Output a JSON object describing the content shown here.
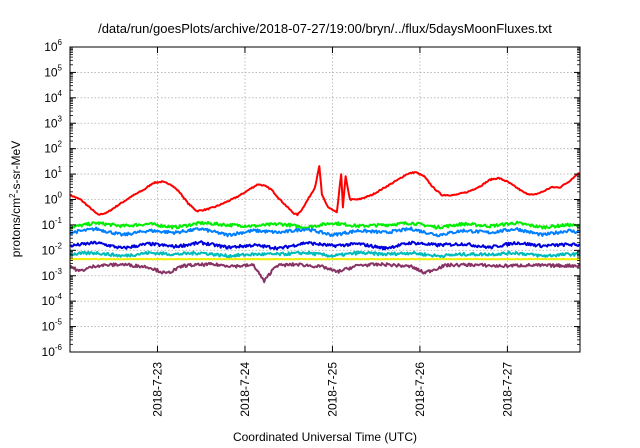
{
  "chart_data": {
    "type": "line",
    "title": "/data/run/goesPlots/archive/2018-07-27/19:00/bryn/../flux/5daysMoonFluxes.txt",
    "xlabel": "Coordinated Universal Time (UTC)",
    "ylabel": {
      "prefix": "protons/cm",
      "sup": "2",
      "suffix": "-s-sr-MeV"
    },
    "yscale": "log",
    "ylim": [
      1e-06,
      1000000.0
    ],
    "y_ticks": [
      {
        "base": "10",
        "exp": "-6",
        "value": 1e-06
      },
      {
        "base": "10",
        "exp": "-5",
        "value": 1e-05
      },
      {
        "base": "10",
        "exp": "-4",
        "value": 0.0001
      },
      {
        "base": "10",
        "exp": "-3",
        "value": 0.001
      },
      {
        "base": "10",
        "exp": "-2",
        "value": 0.01
      },
      {
        "base": "10",
        "exp": "-1",
        "value": 0.1
      },
      {
        "base": "10",
        "exp": "0",
        "value": 1
      },
      {
        "base": "10",
        "exp": "1",
        "value": 10
      },
      {
        "base": "10",
        "exp": "2",
        "value": 100
      },
      {
        "base": "10",
        "exp": "3",
        "value": 1000
      },
      {
        "base": "10",
        "exp": "4",
        "value": 10000
      },
      {
        "base": "10",
        "exp": "5",
        "value": 100000
      },
      {
        "base": "10",
        "exp": "6",
        "value": 1000000
      }
    ],
    "x_unit": "days since start of plotted window (2018-07-22 00:00 UTC)",
    "xlim": [
      0.0,
      5.83
    ],
    "x_ticks": [
      {
        "label": "2018-7-23",
        "value": 1
      },
      {
        "label": "2018-7-24",
        "value": 2
      },
      {
        "label": "2018-7-25",
        "value": 3
      },
      {
        "label": "2018-7-26",
        "value": 4
      },
      {
        "label": "2018-7-27",
        "value": 5
      }
    ],
    "grid": true,
    "series": [
      {
        "color": "#ff0000",
        "x": [
          0.0,
          0.12,
          0.22,
          0.32,
          0.42,
          0.55,
          0.7,
          0.85,
          0.95,
          1.05,
          1.15,
          1.25,
          1.35,
          1.45,
          1.55,
          1.65,
          1.75,
          1.85,
          1.95,
          2.05,
          2.15,
          2.22,
          2.3,
          2.4,
          2.55,
          2.6,
          2.65,
          2.68,
          2.72,
          2.8,
          2.85,
          2.88,
          2.95,
          3.05,
          3.1,
          3.12,
          3.15,
          3.2,
          3.3,
          3.45,
          3.6,
          3.75,
          3.85,
          3.95,
          4.05,
          4.15,
          4.25,
          4.4,
          4.55,
          4.7,
          4.8,
          4.9,
          5.0,
          5.1,
          5.2,
          5.3,
          5.4,
          5.5,
          5.6,
          5.7,
          5.8,
          5.83
        ],
        "y": [
          1.5,
          1.0,
          0.5,
          0.25,
          0.3,
          0.6,
          1.3,
          2.5,
          4.5,
          5.0,
          4.0,
          2.0,
          0.7,
          0.35,
          0.4,
          0.5,
          0.7,
          1.0,
          1.5,
          2.5,
          4.0,
          3.5,
          2.5,
          1.0,
          0.3,
          0.25,
          0.4,
          0.6,
          1.0,
          3.0,
          20,
          1.5,
          0.5,
          0.3,
          10,
          0.5,
          8,
          1.0,
          1.0,
          1.5,
          3.0,
          6.0,
          10,
          12,
          8,
          3.0,
          1.5,
          1.5,
          2.0,
          3.5,
          6.0,
          7.0,
          5.0,
          3.0,
          1.8,
          1.5,
          2.0,
          3.0,
          3.0,
          5.0,
          10,
          11
        ]
      },
      {
        "color": "#00ee00",
        "x": [
          0.0,
          0.3,
          0.6,
          0.9,
          1.2,
          1.5,
          1.8,
          2.1,
          2.4,
          2.7,
          3.0,
          3.3,
          3.6,
          3.9,
          4.2,
          4.5,
          4.8,
          5.1,
          5.4,
          5.7,
          5.83
        ],
        "y": [
          0.08,
          0.12,
          0.09,
          0.11,
          0.08,
          0.12,
          0.1,
          0.09,
          0.11,
          0.08,
          0.12,
          0.09,
          0.1,
          0.12,
          0.08,
          0.11,
          0.09,
          0.12,
          0.08,
          0.1,
          0.09
        ]
      },
      {
        "color": "#0080ff",
        "x": [
          0.0,
          0.3,
          0.6,
          0.9,
          1.2,
          1.5,
          1.8,
          2.1,
          2.4,
          2.7,
          3.0,
          3.3,
          3.6,
          3.9,
          4.2,
          4.5,
          4.8,
          5.1,
          5.4,
          5.7,
          5.83
        ],
        "y": [
          0.05,
          0.07,
          0.04,
          0.06,
          0.05,
          0.07,
          0.04,
          0.06,
          0.05,
          0.07,
          0.04,
          0.06,
          0.05,
          0.07,
          0.04,
          0.06,
          0.05,
          0.07,
          0.04,
          0.06,
          0.05
        ]
      },
      {
        "color": "#0000dd",
        "x": [
          0.0,
          0.3,
          0.6,
          0.9,
          1.2,
          1.5,
          1.8,
          2.1,
          2.4,
          2.7,
          3.0,
          3.3,
          3.6,
          3.9,
          4.2,
          4.5,
          4.8,
          5.1,
          5.4,
          5.7,
          5.83
        ],
        "y": [
          0.015,
          0.02,
          0.012,
          0.018,
          0.014,
          0.02,
          0.013,
          0.016,
          0.012,
          0.02,
          0.015,
          0.018,
          0.012,
          0.02,
          0.016,
          0.018,
          0.013,
          0.02,
          0.015,
          0.017,
          0.016
        ]
      },
      {
        "color": "#00bbbb",
        "x": [
          0.0,
          0.3,
          0.6,
          0.9,
          1.2,
          1.5,
          1.8,
          2.1,
          2.4,
          2.7,
          3.0,
          3.3,
          3.6,
          3.9,
          4.2,
          4.5,
          4.8,
          5.1,
          5.4,
          5.7,
          5.83
        ],
        "y": [
          0.007,
          0.008,
          0.006,
          0.008,
          0.007,
          0.008,
          0.006,
          0.007,
          0.007,
          0.008,
          0.006,
          0.008,
          0.007,
          0.008,
          0.006,
          0.007,
          0.007,
          0.008,
          0.006,
          0.007,
          0.007
        ]
      },
      {
        "color": "#eeee00",
        "x": [
          0.0,
          0.3,
          0.6,
          0.9,
          1.2,
          1.5,
          1.8,
          2.1,
          2.4,
          2.7,
          3.0,
          3.3,
          3.6,
          3.9,
          4.2,
          4.5,
          4.8,
          5.1,
          5.4,
          5.7,
          5.83
        ],
        "y": [
          0.0045,
          0.0045,
          0.0045,
          0.0045,
          0.0045,
          0.0045,
          0.0045,
          0.0045,
          0.0045,
          0.0045,
          0.0045,
          0.0045,
          0.0045,
          0.0045,
          0.0045,
          0.0045,
          0.0045,
          0.0045,
          0.0045,
          0.0045,
          0.0045
        ]
      },
      {
        "color": "#883366",
        "x": [
          0.0,
          0.1,
          0.3,
          0.6,
          0.9,
          1.1,
          1.3,
          1.6,
          1.9,
          2.1,
          2.22,
          2.35,
          2.6,
          2.9,
          3.05,
          3.3,
          3.6,
          3.9,
          4.05,
          4.3,
          4.6,
          4.9,
          5.2,
          5.5,
          5.83
        ],
        "y": [
          0.0025,
          0.0015,
          0.0025,
          0.0028,
          0.0022,
          0.0012,
          0.0025,
          0.0028,
          0.0024,
          0.0026,
          0.0006,
          0.0025,
          0.0028,
          0.0022,
          0.0014,
          0.0026,
          0.0028,
          0.0023,
          0.0013,
          0.0026,
          0.0027,
          0.0024,
          0.0026,
          0.0025,
          0.0025
        ]
      }
    ]
  }
}
